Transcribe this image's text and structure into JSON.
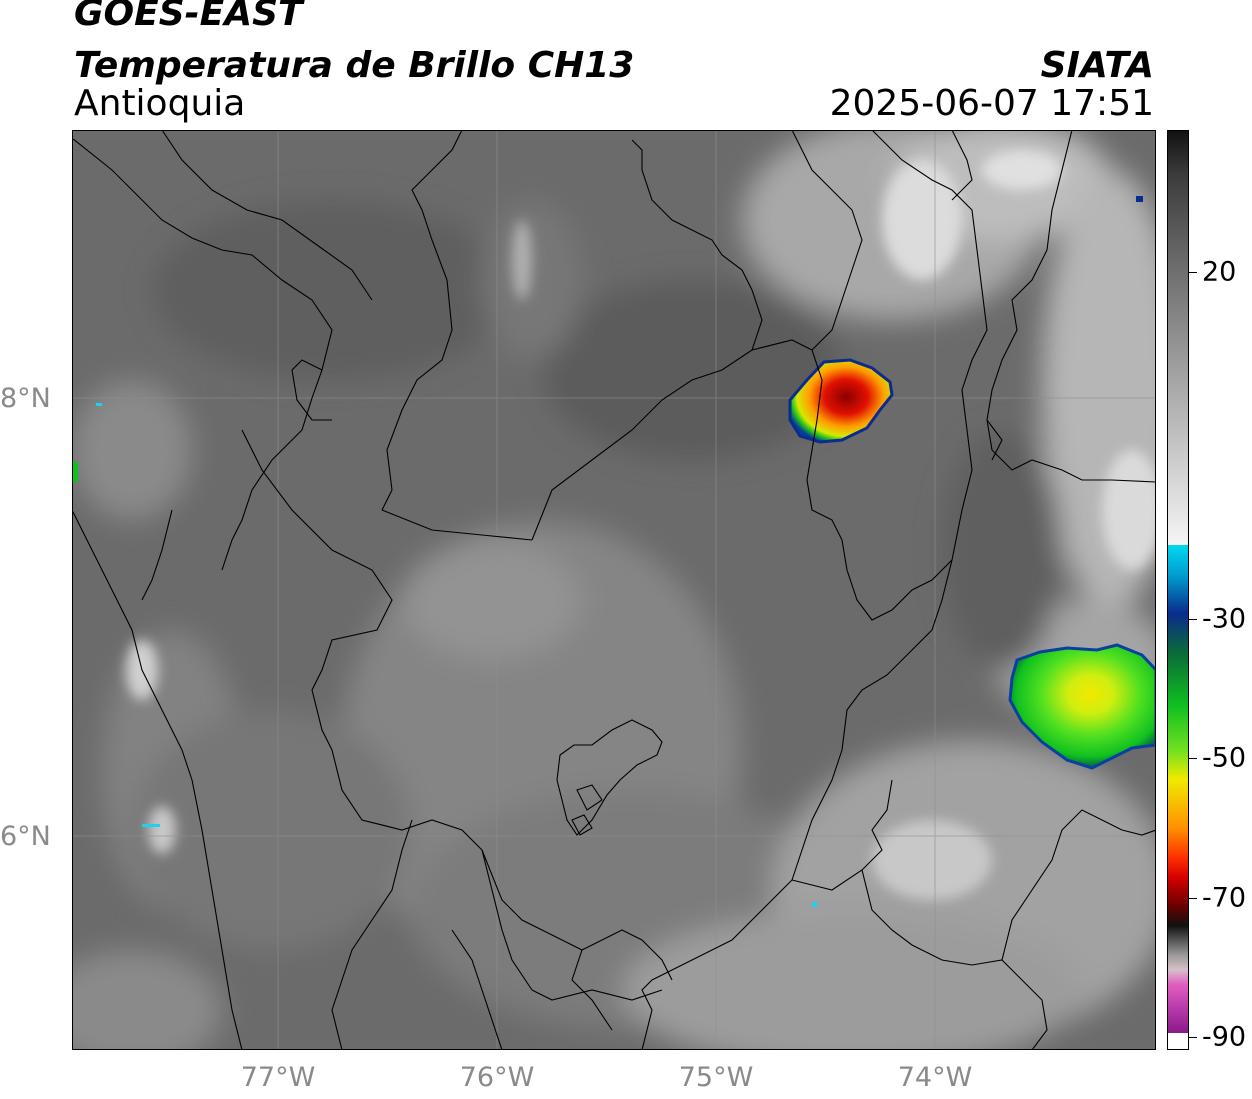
{
  "header": {
    "satellite": "GOES-EAST",
    "product": "Temperatura de Brillo CH13",
    "organization": "SIATA",
    "region": "Antioquia",
    "datetime": "2025-06-07 17:51"
  },
  "map": {
    "lat_labels": [
      "8°N",
      "6°N"
    ],
    "lon_labels": [
      "77°W",
      "76°W",
      "75°W",
      "74°W"
    ],
    "colors": {
      "frame": "#000000",
      "background_gray": "#6b6b6b",
      "gridline": "#8f8f8f"
    }
  },
  "colorbar": {
    "ticks": [
      {
        "value": 20,
        "label": "20"
      },
      {
        "value": -30,
        "label": "-30"
      },
      {
        "value": -50,
        "label": "-50"
      },
      {
        "value": -70,
        "label": "-70"
      },
      {
        "value": -90,
        "label": "-90"
      }
    ],
    "colors": {
      "warm_top": "#111111",
      "cold_white": "#f5f5f5",
      "cyan": "#00d8f0",
      "blue": "#0a2c8c",
      "green": "#10c020",
      "yellow": "#f0ea00",
      "orange": "#ff9000",
      "red": "#d80000",
      "dark_red": "#300000",
      "pink": "#e060c0",
      "purple": "#8a1a8a"
    }
  }
}
